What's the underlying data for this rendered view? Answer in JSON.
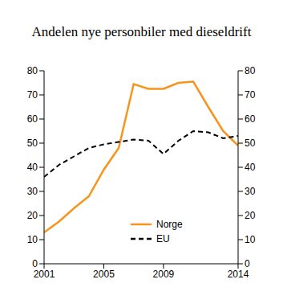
{
  "chart_data": {
    "type": "line",
    "title": "Andelen nye personbiler med dieseldrift",
    "x": [
      2001,
      2002,
      2003,
      2004,
      2005,
      2006,
      2007,
      2008,
      2009,
      2010,
      2011,
      2012,
      2013,
      2014
    ],
    "series": [
      {
        "name": "Norge",
        "color": "#f7941d",
        "line_style": "solid",
        "values": [
          13,
          17.5,
          23,
          28,
          39,
          48,
          74.5,
          72.5,
          72.5,
          75,
          75.5,
          65,
          55,
          49
        ]
      },
      {
        "name": "EU",
        "color": "#000000",
        "line_style": "dashed",
        "values": [
          36,
          41,
          44.5,
          48,
          49.5,
          50.5,
          51.5,
          51,
          45.5,
          51,
          55,
          54.5,
          52,
          53
        ]
      }
    ],
    "xlim": [
      2001,
      2014
    ],
    "xticks": [
      2001,
      2005,
      2009,
      2014
    ],
    "ylim": [
      0,
      80
    ],
    "yticks": [
      0,
      10,
      20,
      30,
      40,
      50,
      60,
      70,
      80
    ],
    "y2lim": [
      0,
      80
    ],
    "y2ticks": [
      0,
      10,
      20,
      30,
      40,
      50,
      60,
      70,
      80
    ],
    "grid": false,
    "legend": "lower center"
  }
}
